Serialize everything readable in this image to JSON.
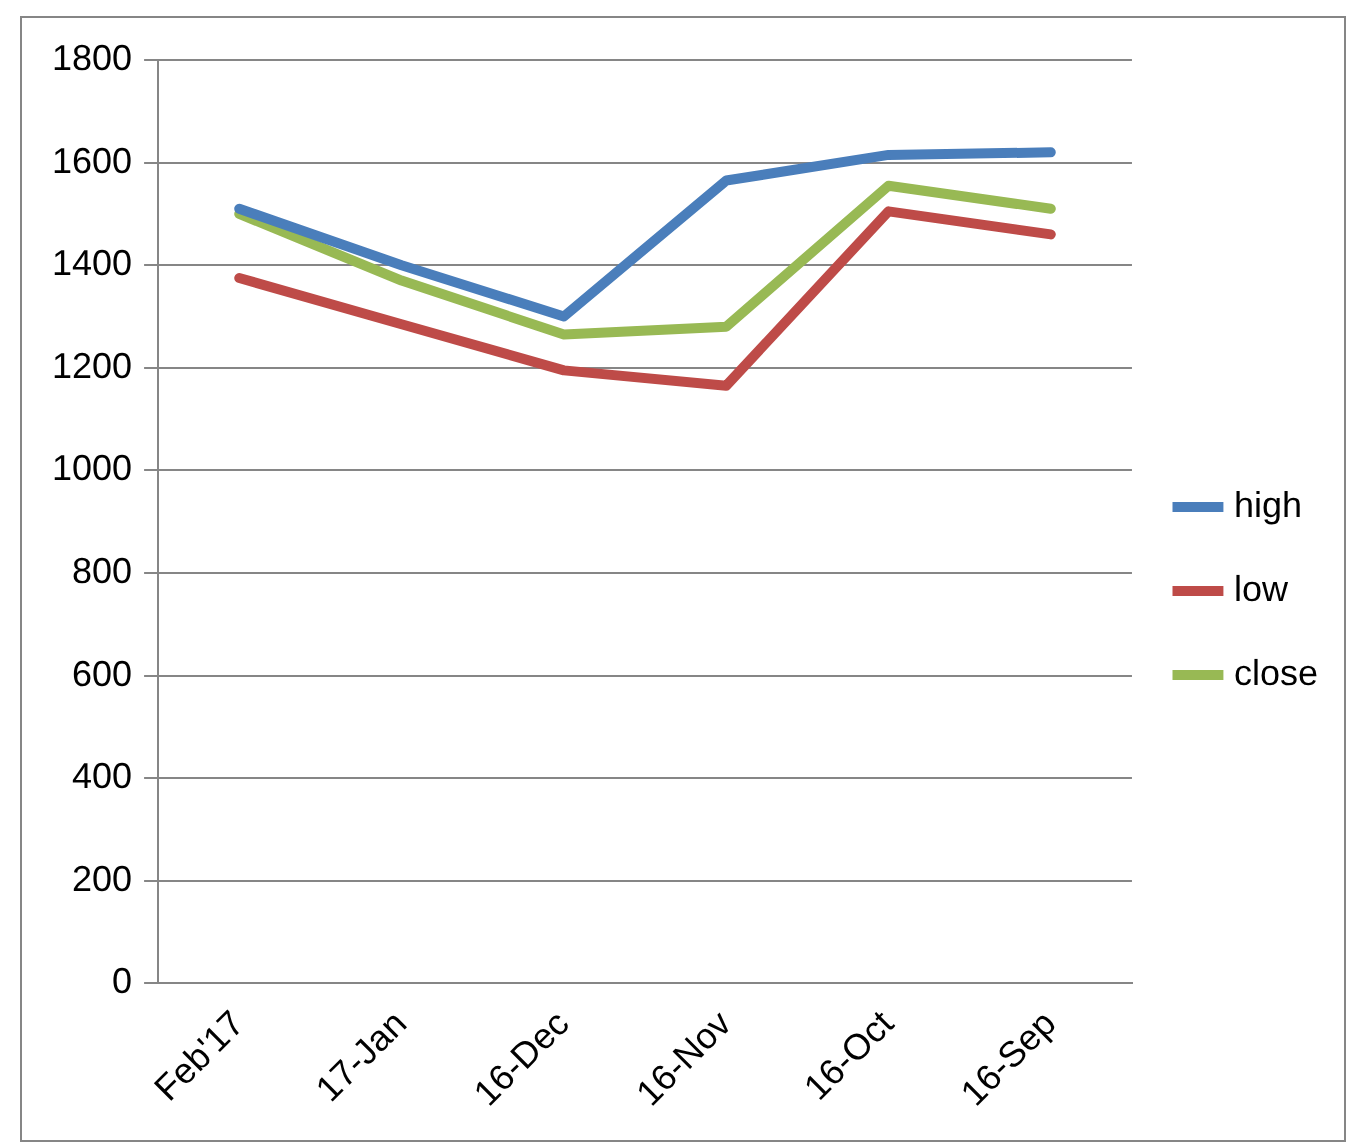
{
  "chart_data": {
    "type": "line",
    "categories": [
      "Feb'17",
      "17-Jan",
      "16-Dec",
      "16-Nov",
      "16-Oct",
      "16-Sep"
    ],
    "series": [
      {
        "name": "high",
        "color": "#4a7ebb",
        "values": [
          1510,
          1400,
          1300,
          1565,
          1615,
          1620
        ]
      },
      {
        "name": "low",
        "color": "#be4b48",
        "values": [
          1375,
          1285,
          1195,
          1165,
          1505,
          1460
        ]
      },
      {
        "name": "close",
        "color": "#98b954",
        "values": [
          1500,
          1370,
          1265,
          1280,
          1555,
          1510
        ]
      }
    ],
    "ylim": [
      0,
      1800
    ],
    "yticks": [
      0,
      200,
      400,
      600,
      800,
      1000,
      1200,
      1400,
      1600,
      1800
    ],
    "grid": "y",
    "legend": "right",
    "marker": "none",
    "line_style": "solid"
  }
}
